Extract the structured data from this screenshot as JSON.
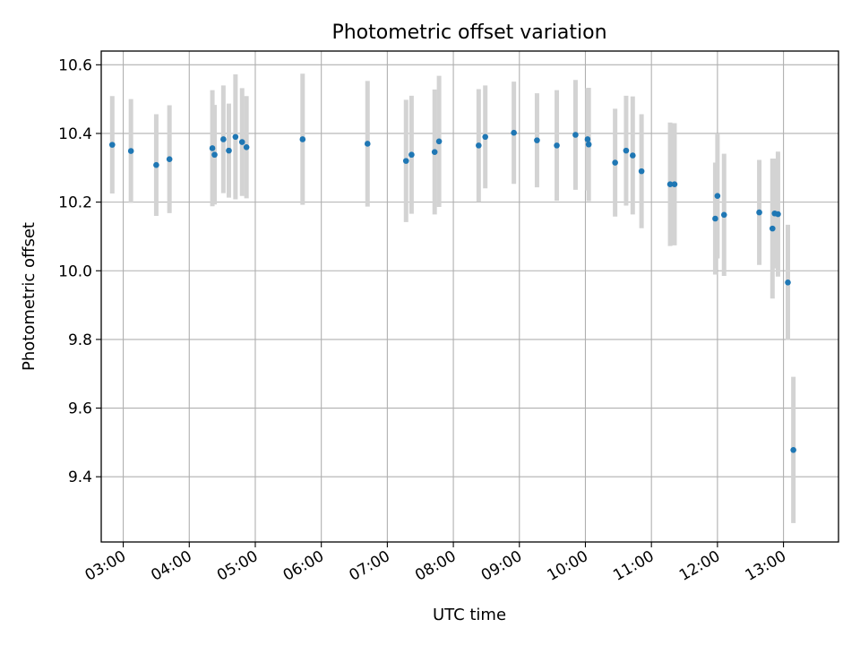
{
  "chart_data": {
    "type": "scatter",
    "title": "Photometric offset variation",
    "xlabel": "UTC time",
    "ylabel": "Photometric offset",
    "x_tick_labels": [
      "03:00",
      "04:00",
      "05:00",
      "06:00",
      "07:00",
      "08:00",
      "09:00",
      "10:00",
      "11:00",
      "12:00",
      "13:00"
    ],
    "y_tick_labels": [
      "9.4",
      "9.6",
      "9.8",
      "10.0",
      "10.2",
      "10.4",
      "10.6"
    ],
    "xlim": [
      "02:40",
      "13:50"
    ],
    "ylim": [
      9.21,
      10.64
    ],
    "grid": true,
    "colors": {
      "point": "#1f77b4",
      "errorbar": "#d3d3d3",
      "grid": "#b0b0b0"
    },
    "points": [
      {
        "x": "02:50",
        "y": 10.367,
        "err": 0.142
      },
      {
        "x": "03:07",
        "y": 10.349,
        "err": 0.151
      },
      {
        "x": "03:30",
        "y": 10.308,
        "err": 0.148
      },
      {
        "x": "03:42",
        "y": 10.325,
        "err": 0.157
      },
      {
        "x": "04:21",
        "y": 10.357,
        "err": 0.169
      },
      {
        "x": "04:23",
        "y": 10.338,
        "err": 0.145
      },
      {
        "x": "04:31",
        "y": 10.383,
        "err": 0.157
      },
      {
        "x": "04:36",
        "y": 10.35,
        "err": 0.137
      },
      {
        "x": "04:42",
        "y": 10.39,
        "err": 0.182
      },
      {
        "x": "04:48",
        "y": 10.375,
        "err": 0.157
      },
      {
        "x": "04:52",
        "y": 10.36,
        "err": 0.149
      },
      {
        "x": "05:43",
        "y": 10.383,
        "err": 0.191
      },
      {
        "x": "06:42",
        "y": 10.37,
        "err": 0.183
      },
      {
        "x": "07:17",
        "y": 10.32,
        "err": 0.178
      },
      {
        "x": "07:22",
        "y": 10.338,
        "err": 0.172
      },
      {
        "x": "07:43",
        "y": 10.346,
        "err": 0.182
      },
      {
        "x": "07:47",
        "y": 10.377,
        "err": 0.191
      },
      {
        "x": "08:23",
        "y": 10.365,
        "err": 0.164
      },
      {
        "x": "08:29",
        "y": 10.39,
        "err": 0.15
      },
      {
        "x": "08:55",
        "y": 10.402,
        "err": 0.149
      },
      {
        "x": "09:16",
        "y": 10.38,
        "err": 0.137
      },
      {
        "x": "09:34",
        "y": 10.365,
        "err": 0.161
      },
      {
        "x": "09:51",
        "y": 10.396,
        "err": 0.16
      },
      {
        "x": "10:02",
        "y": 10.383,
        "err": 0.149
      },
      {
        "x": "10:03",
        "y": 10.368,
        "err": 0.165
      },
      {
        "x": "10:27",
        "y": 10.315,
        "err": 0.157
      },
      {
        "x": "10:37",
        "y": 10.35,
        "err": 0.16
      },
      {
        "x": "10:43",
        "y": 10.336,
        "err": 0.172
      },
      {
        "x": "10:51",
        "y": 10.29,
        "err": 0.166
      },
      {
        "x": "11:17",
        "y": 10.252,
        "err": 0.18
      },
      {
        "x": "11:21",
        "y": 10.252,
        "err": 0.178
      },
      {
        "x": "11:58",
        "y": 10.152,
        "err": 0.163
      },
      {
        "x": "12:00",
        "y": 10.218,
        "err": 0.182
      },
      {
        "x": "12:06",
        "y": 10.163,
        "err": 0.178
      },
      {
        "x": "12:38",
        "y": 10.17,
        "err": 0.153
      },
      {
        "x": "12:50",
        "y": 10.123,
        "err": 0.204
      },
      {
        "x": "12:52",
        "y": 10.167,
        "err": 0.16
      },
      {
        "x": "12:55",
        "y": 10.165,
        "err": 0.182
      },
      {
        "x": "13:04",
        "y": 9.966,
        "err": 0.168
      },
      {
        "x": "13:09",
        "y": 9.478,
        "err": 0.213
      }
    ]
  }
}
